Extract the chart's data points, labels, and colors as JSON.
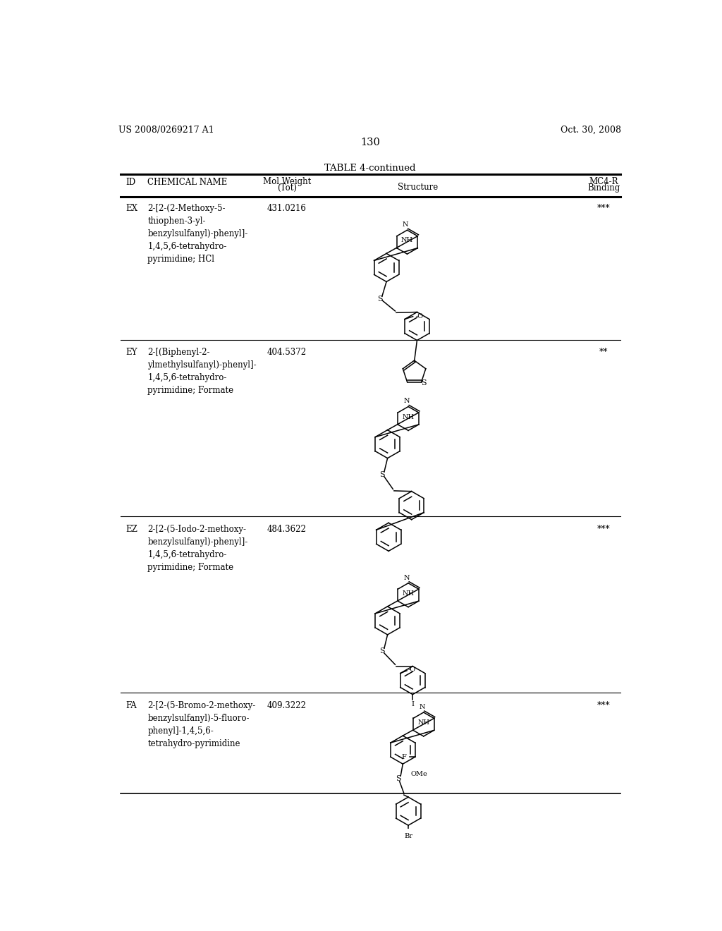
{
  "page_left": "US 2008/0269217 A1",
  "page_right": "Oct. 30, 2008",
  "page_number": "130",
  "table_title": "TABLE 4-continued",
  "background_color": "#ffffff",
  "text_color": "#000000",
  "rows": [
    {
      "id": "EX",
      "name": "2-[2-(2-Methoxy-5-\nthiophen-3-yl-\nbenzylsulfanyl)-phenyl]-\n1,4,5,6-tetrahydro-\npyrimidine; HCl",
      "mol_weight": "431.0216",
      "binding": "***"
    },
    {
      "id": "EY",
      "name": "2-[(Biphenyl-2-\nylmethylsulfanyl)-phenyl]-\n1,4,5,6-tetrahydro-\npyrimidine; Formate",
      "mol_weight": "404.5372",
      "binding": "**"
    },
    {
      "id": "EZ",
      "name": "2-[2-(5-Iodo-2-methoxy-\nbenzylsulfanyl)-phenyl]-\n1,4,5,6-tetrahydro-\npyrimidine; Formate",
      "mol_weight": "484.3622",
      "binding": "***"
    },
    {
      "id": "FA",
      "name": "2-[2-(5-Bromo-2-methoxy-\nbenzylsulfanyl)-5-fluoro-\nphenyl]-1,4,5,6-\ntetrahydro-pyrimidine",
      "mol_weight": "409.3222",
      "binding": "***"
    }
  ]
}
